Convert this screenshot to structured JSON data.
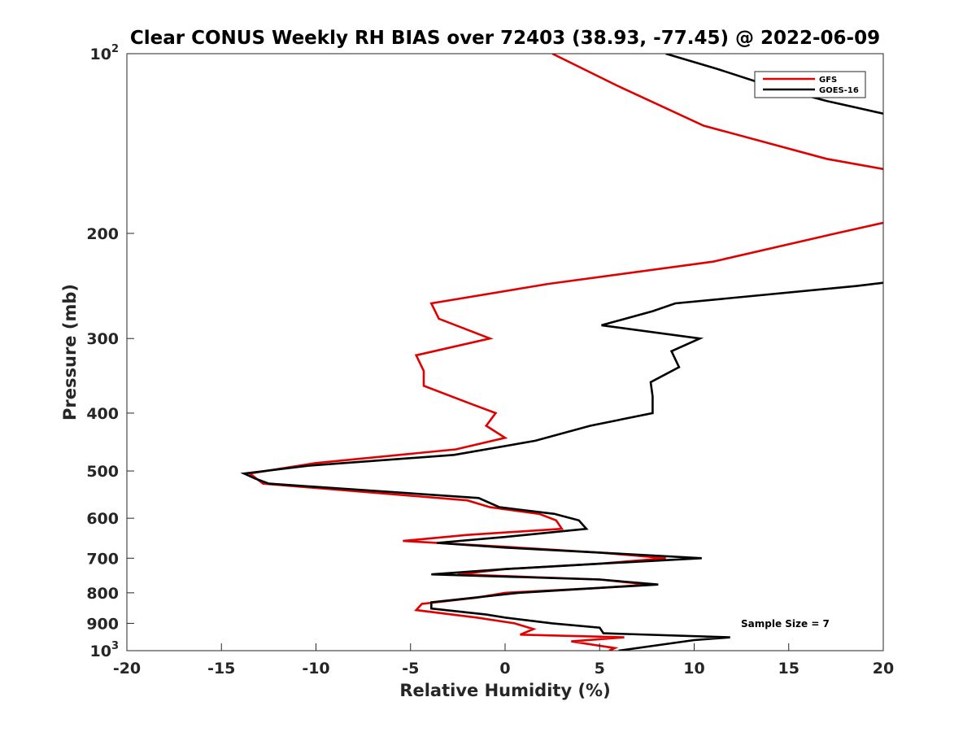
{
  "chart_data": {
    "type": "line",
    "title": "Clear CONUS Weekly RH BIAS over 72403 (38.93, -77.45) @ 2022-06-09",
    "xlabel": "Relative Humidity (%)",
    "ylabel": "Pressure (mb)",
    "xlim": [
      -20,
      20
    ],
    "ylim": [
      100,
      1000
    ],
    "y_scale": "log",
    "y_reversed": true,
    "grid": false,
    "legend_position": "top-right",
    "x_ticks": [
      "-20",
      "-15",
      "-10",
      "-5",
      "0",
      "5",
      "10",
      "15",
      "20"
    ],
    "y_ticks": [
      {
        "value": 100,
        "base": "10",
        "exp": "2"
      },
      {
        "value": 200,
        "label": "200"
      },
      {
        "value": 300,
        "label": "300"
      },
      {
        "value": 400,
        "label": "400"
      },
      {
        "value": 500,
        "label": "500"
      },
      {
        "value": 600,
        "label": "600"
      },
      {
        "value": 700,
        "label": "700"
      },
      {
        "value": 800,
        "label": "800"
      },
      {
        "value": 900,
        "label": "900"
      },
      {
        "value": 1000,
        "base": "10",
        "exp": "3"
      }
    ],
    "annotation": "Sample Size = 7",
    "series": [
      {
        "name": "GFS",
        "color": "#e00000",
        "points": [
          [
            2.5,
            100
          ],
          [
            5.9,
            113
          ],
          [
            10.5,
            132
          ],
          [
            17,
            150
          ],
          [
            20,
            156
          ],
          [
            null,
            null
          ],
          [
            20,
            192
          ],
          [
            17.2,
            201
          ],
          [
            11,
            223
          ],
          [
            2.3,
            243
          ],
          [
            -3.9,
            262
          ],
          [
            -3.5,
            278
          ],
          [
            -0.8,
            300
          ],
          [
            -4.7,
            320
          ],
          [
            -4.3,
            340
          ],
          [
            -4.3,
            360
          ],
          [
            -1.9,
            385
          ],
          [
            -0.5,
            400
          ],
          [
            -1,
            420
          ],
          [
            0,
            440
          ],
          [
            -2.6,
            460
          ],
          [
            -10,
            485
          ],
          [
            -13.5,
            505
          ],
          [
            -12.8,
            525
          ],
          [
            -2,
            560
          ],
          [
            -0.8,
            575
          ],
          [
            1.8,
            590
          ],
          [
            2.7,
            605
          ],
          [
            3,
            625
          ],
          [
            -2,
            640
          ],
          [
            -5.4,
            655
          ],
          [
            0,
            670
          ],
          [
            5,
            685
          ],
          [
            8.5,
            700
          ],
          [
            5,
            715
          ],
          [
            0,
            730
          ],
          [
            -2.5,
            745
          ],
          [
            5,
            760
          ],
          [
            7.6,
            775
          ],
          [
            5,
            785
          ],
          [
            0,
            800
          ],
          [
            -1.5,
            815
          ],
          [
            -4.4,
            835
          ],
          [
            -4.7,
            855
          ],
          [
            -1.5,
            880
          ],
          [
            0.5,
            900
          ],
          [
            1.5,
            920
          ],
          [
            0.8,
            940
          ],
          [
            6.3,
            950
          ],
          [
            3.5,
            965
          ],
          [
            5.8,
            990
          ],
          [
            5.5,
            1000
          ]
        ]
      },
      {
        "name": "GOES-16",
        "color": "#000000",
        "points": [
          [
            8.5,
            100
          ],
          [
            11.2,
            106
          ],
          [
            13.9,
            113
          ],
          [
            17,
            120
          ],
          [
            20,
            126
          ],
          [
            null,
            null
          ],
          [
            20,
            242
          ],
          [
            18.6,
            245
          ],
          [
            9,
            262
          ],
          [
            7.8,
            270
          ],
          [
            5.1,
            285
          ],
          [
            10.3,
            300
          ],
          [
            8.8,
            315
          ],
          [
            9.2,
            335
          ],
          [
            7.7,
            355
          ],
          [
            7.8,
            375
          ],
          [
            7.8,
            400
          ],
          [
            4.5,
            420
          ],
          [
            1.6,
            445
          ],
          [
            -2.7,
            470
          ],
          [
            -10.4,
            490
          ],
          [
            -13.8,
            505
          ],
          [
            -13.2,
            515
          ],
          [
            -12.5,
            525
          ],
          [
            -1.4,
            555
          ],
          [
            -0.3,
            575
          ],
          [
            2.6,
            590
          ],
          [
            3.9,
            605
          ],
          [
            4.3,
            625
          ],
          [
            0,
            645
          ],
          [
            -3.6,
            660
          ],
          [
            0,
            672
          ],
          [
            5,
            685
          ],
          [
            10.4,
            700
          ],
          [
            5,
            715
          ],
          [
            0,
            730
          ],
          [
            -3.9,
            745
          ],
          [
            5,
            760
          ],
          [
            8.1,
            775
          ],
          [
            5,
            785
          ],
          [
            0.7,
            800
          ],
          [
            -3.9,
            830
          ],
          [
            -3.9,
            850
          ],
          [
            -1,
            870
          ],
          [
            0,
            880
          ],
          [
            2.5,
            900
          ],
          [
            5,
            915
          ],
          [
            5.2,
            935
          ],
          [
            11.9,
            950
          ],
          [
            10,
            960
          ],
          [
            6,
            1000
          ]
        ]
      }
    ]
  }
}
